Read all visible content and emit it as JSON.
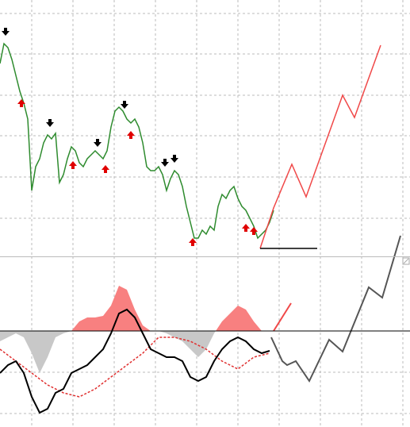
{
  "chart_data": [
    {
      "type": "line",
      "grid": true,
      "xlim": [
        0,
        517
      ],
      "ylim": [
        0,
        323
      ],
      "xticks": [
        40,
        92,
        144,
        196,
        248,
        300,
        352,
        404,
        456,
        508
      ],
      "yticks": [
        48,
        100,
        152,
        203,
        255,
        306
      ],
      "series": [
        {
          "style": "line",
          "color": "#2e8b2e",
          "x": [
            0,
            5,
            10,
            15,
            20,
            25,
            30,
            35,
            40,
            45,
            50,
            55,
            60,
            65,
            70,
            75,
            80,
            85,
            90,
            95,
            100,
            105,
            110,
            115,
            120,
            125,
            130,
            135,
            140,
            145,
            150,
            155,
            160,
            165,
            170,
            175,
            180,
            185,
            190,
            195,
            200,
            205,
            210,
            215,
            220,
            225,
            230,
            235,
            240,
            245,
            250,
            255,
            260,
            265,
            270,
            275,
            280,
            285,
            290,
            295,
            300,
            305,
            310,
            315,
            320,
            325,
            330,
            335,
            340,
            345
          ],
          "values": [
            243,
            268,
            263,
            248,
            228,
            208,
            193,
            173,
            83,
            113,
            123,
            143,
            153,
            148,
            155,
            93,
            103,
            123,
            138,
            133,
            118,
            113,
            123,
            128,
            133,
            128,
            123,
            133,
            163,
            183,
            188,
            183,
            173,
            168,
            173,
            163,
            143,
            113,
            108,
            108,
            113,
            103,
            83,
            98,
            108,
            103,
            88,
            63,
            43,
            23,
            23,
            33,
            28,
            38,
            33,
            63,
            78,
            73,
            83,
            88,
            73,
            63,
            58,
            48,
            38,
            23,
            28,
            33,
            43,
            58
          ]
        },
        {
          "style": "line",
          "color": "#f04848",
          "x": [
            328,
            345,
            368,
            386,
            432,
            447,
            480
          ],
          "values": [
            10,
            61,
            116,
            75,
            203,
            175,
            266
          ]
        },
        {
          "style": "line",
          "color": "#000000",
          "x": [
            328,
            400
          ],
          "values": [
            10,
            10
          ]
        },
        {
          "style": "arrow-down",
          "color": "#000000",
          "x": [
            7,
            63,
            123,
            157,
            208,
            220
          ],
          "values": [
            283,
            168,
            143,
            191,
            118,
            123
          ]
        },
        {
          "style": "arrow-up",
          "color": "#e00000",
          "x": [
            27,
            92,
            133,
            165,
            243,
            310,
            320
          ],
          "values": [
            193,
            115,
            110,
            153,
            18,
            36,
            32
          ]
        }
      ]
    },
    {
      "type": "line",
      "grid": true,
      "xlim": [
        0,
        517
      ],
      "ylim": [
        -121,
        94
      ],
      "zero_line": true,
      "xticks": [
        40,
        92,
        144,
        196,
        248,
        300,
        352,
        404,
        456,
        508
      ],
      "yticks": [
        -104,
        -52
      ],
      "series": [
        {
          "style": "area",
          "color": "#f88080",
          "negative_color": "#c8c8c8",
          "x": [
            0,
            10,
            20,
            30,
            40,
            50,
            60,
            70,
            80,
            90,
            100,
            110,
            120,
            130,
            140,
            150,
            160,
            170,
            180,
            190,
            200,
            210,
            220,
            230,
            240,
            250,
            260,
            270,
            280,
            290,
            300,
            310,
            320,
            330
          ],
          "values": [
            -13,
            -8,
            -3,
            -8,
            -28,
            -53,
            -33,
            -8,
            -3,
            0,
            12,
            17,
            17,
            19,
            32,
            57,
            52,
            27,
            7,
            0,
            0,
            -3,
            -8,
            -13,
            -23,
            -33,
            -23,
            -3,
            12,
            22,
            32,
            27,
            12,
            0
          ]
        },
        {
          "style": "dashed",
          "color": "#e03030",
          "x": [
            0,
            20,
            40,
            60,
            80,
            100,
            120,
            140,
            160,
            180,
            200,
            220,
            240,
            260,
            280,
            300,
            320,
            340
          ],
          "values": [
            -23,
            -38,
            -53,
            -68,
            -78,
            -83,
            -73,
            -58,
            -43,
            -28,
            -8,
            -8,
            -13,
            -23,
            -38,
            -48,
            -33,
            -28
          ]
        },
        {
          "style": "line",
          "color": "#000000",
          "width": 2,
          "x": [
            0,
            10,
            20,
            30,
            40,
            50,
            60,
            70,
            80,
            90,
            100,
            110,
            120,
            130,
            140,
            150,
            160,
            170,
            180,
            190,
            200,
            210,
            220,
            230,
            240,
            250,
            260,
            270,
            280,
            290,
            300,
            310,
            320,
            330,
            340
          ],
          "values": [
            -53,
            -43,
            -38,
            -53,
            -83,
            -103,
            -98,
            -78,
            -73,
            -53,
            -48,
            -43,
            -33,
            -23,
            -3,
            22,
            27,
            17,
            -3,
            -23,
            -28,
            -33,
            -33,
            -38,
            -58,
            -63,
            -58,
            -38,
            -23,
            -13,
            -8,
            -13,
            -23,
            -28,
            -25
          ]
        },
        {
          "style": "line",
          "color": "#555555",
          "width": 2,
          "x": [
            342,
            356,
            362,
            373,
            390,
            415,
            432,
            465,
            482,
            505
          ],
          "values": [
            -8,
            -38,
            -43,
            -38,
            -63,
            -11,
            -26,
            55,
            42,
            120
          ]
        },
        {
          "style": "line",
          "color": "#f04848",
          "width": 2,
          "x": [
            345,
            367
          ],
          "values": [
            0,
            35
          ]
        }
      ]
    }
  ]
}
